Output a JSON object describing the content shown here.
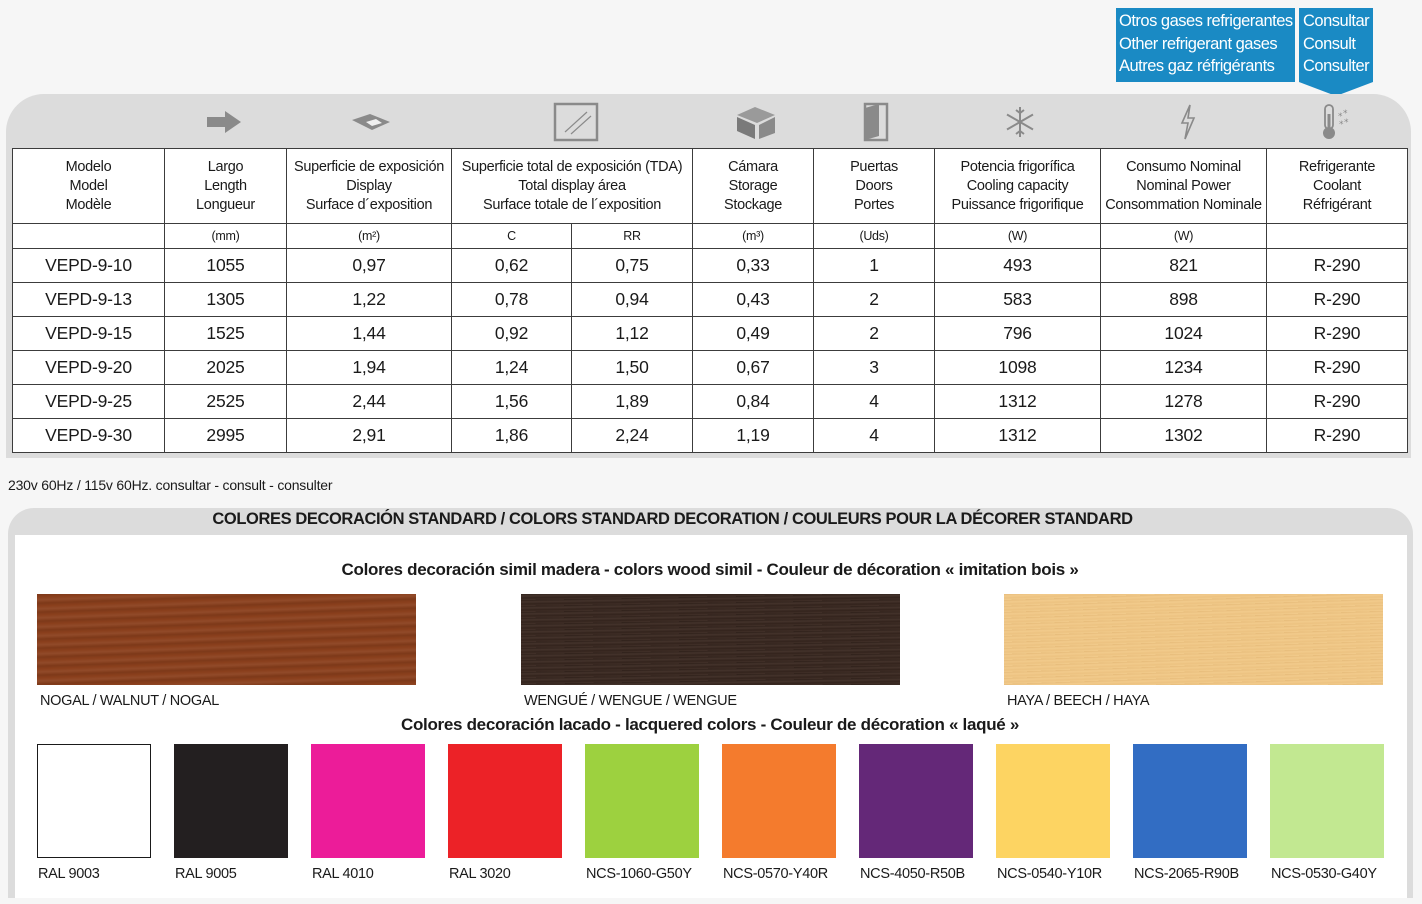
{
  "gas_box": {
    "lines": [
      "Otros gases refrigerantes",
      "Other refrigerant gases",
      "Autres gaz réfrigérants"
    ]
  },
  "consult_box": {
    "lines": [
      "Consultar",
      "Consult",
      "Consulter"
    ]
  },
  "icons": [
    "arrow-right-icon",
    "display-surface-icon",
    "glass-door-icon",
    "storage-cube-icon",
    "door-icon",
    "snowflake-icon",
    "lightning-icon",
    "thermometer-icon"
  ],
  "table": {
    "headers": [
      [
        "Modelo",
        "Model",
        "Modèle"
      ],
      [
        "Largo",
        "Length",
        "Longueur"
      ],
      [
        "Superficie de exposición",
        "Display",
        "Surface d´exposition"
      ],
      [
        "Superficie total de exposición (TDA)",
        "Total display área",
        "Surface totale de l´exposition"
      ],
      [
        "Cámara",
        "Storage",
        "Stockage"
      ],
      [
        "Puertas",
        "Doors",
        "Portes"
      ],
      [
        "Potencia frigorífica",
        "Cooling capacity",
        "Puissance frigorifique"
      ],
      [
        "Consumo Nominal",
        "Nominal Power",
        "Consommation Nominale"
      ],
      [
        "Refrigerante",
        "Coolant",
        "Réfrigérant"
      ]
    ],
    "units": [
      "",
      "(mm)",
      "(m²)",
      "C",
      "RR",
      "(m³)",
      "(Uds)",
      "(W)",
      "(W)",
      ""
    ],
    "rows": [
      [
        "VEPD-9-10",
        "1055",
        "0,97",
        "0,62",
        "0,75",
        "0,33",
        "1",
        "493",
        "821",
        "R-290"
      ],
      [
        "VEPD-9-13",
        "1305",
        "1,22",
        "0,78",
        "0,94",
        "0,43",
        "2",
        "583",
        "898",
        "R-290"
      ],
      [
        "VEPD-9-15",
        "1525",
        "1,44",
        "0,92",
        "1,12",
        "0,49",
        "2",
        "796",
        "1024",
        "R-290"
      ],
      [
        "VEPD-9-20",
        "2025",
        "1,94",
        "1,24",
        "1,50",
        "0,67",
        "3",
        "1098",
        "1234",
        "R-290"
      ],
      [
        "VEPD-9-25",
        "2525",
        "2,44",
        "1,56",
        "1,89",
        "0,84",
        "4",
        "1312",
        "1278",
        "R-290"
      ],
      [
        "VEPD-9-30",
        "2995",
        "2,91",
        "1,86",
        "2,24",
        "1,19",
        "4",
        "1312",
        "1302",
        "R-290"
      ]
    ]
  },
  "note": "230v 60Hz / 115v 60Hz. consultar - consult - consulter",
  "colors": {
    "title": "COLORES DECORACIÓN STANDARD / COLORS STANDARD DECORATION / COULEURS POUR LA DÉCORER STANDARD",
    "wood_title": "Colores decoración simil madera - colors wood simil - Couleur de décoration « imitation bois »",
    "wood": [
      {
        "label": "NOGAL / WALNUT / NOGAL",
        "color": "#8a3f1c"
      },
      {
        "label": "WENGUÉ / WENGUE / WENGUE",
        "color": "#3a2820"
      },
      {
        "label": "HAYA / BEECH / HAYA",
        "color": "#f2cb8c"
      }
    ],
    "lacquer_title": "Colores decoración lacado - lacquered colors - Couleur de décoration « laqué »",
    "lacquer": [
      {
        "label": "RAL 9003",
        "color": "#ffffff"
      },
      {
        "label": "RAL 9005",
        "color": "#231f20"
      },
      {
        "label": "RAL 4010",
        "color": "#ec1c99"
      },
      {
        "label": "RAL 3020",
        "color": "#ec2227"
      },
      {
        "label": "NCS-1060-G50Y",
        "color": "#9dd13f"
      },
      {
        "label": "NCS-0570-Y40R",
        "color": "#f47b2d"
      },
      {
        "label": "NCS-4050-R50B",
        "color": "#642878"
      },
      {
        "label": "NCS-0540-Y10R",
        "color": "#fdd462"
      },
      {
        "label": "NCS-2065-R90B",
        "color": "#326dc3"
      },
      {
        "label": "NCS-0530-G40Y",
        "color": "#c2e891"
      }
    ]
  }
}
